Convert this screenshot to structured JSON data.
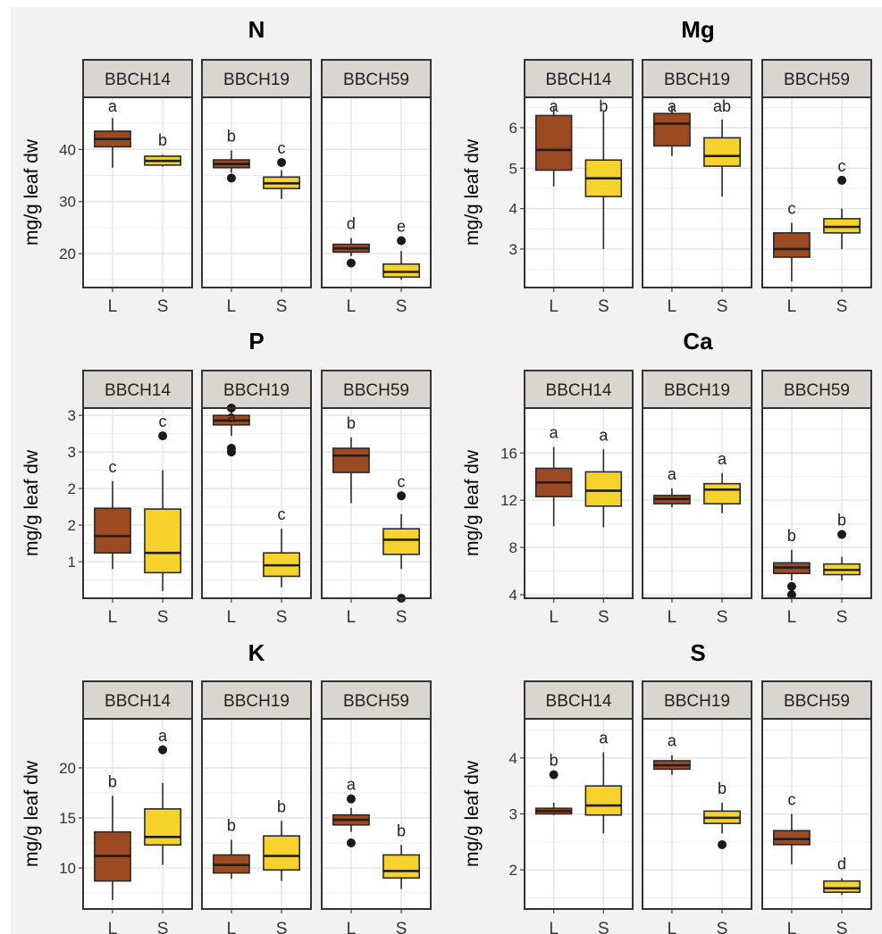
{
  "colors": {
    "L": "#9b4a22",
    "S": "#f6d22c",
    "strip_bg": "#d9d5d0",
    "grid": "#e4e4e4",
    "frame": "#333333",
    "page_bg": "#f2f2f2"
  },
  "chart_data": [
    {
      "type": "boxplot",
      "title": "N",
      "ylabel": "mg/g leaf dw",
      "ylim": [
        13.5,
        50
      ],
      "yticks": [
        20,
        30,
        40
      ],
      "ytick_labels": [
        "20",
        "30",
        "40"
      ],
      "panels": [
        {
          "label": "BBCH14",
          "boxes": [
            {
              "group": "L",
              "min": 36.5,
              "q1": 40.5,
              "median": 42,
              "q3": 43.5,
              "max": 46,
              "outliers": [],
              "letter": "a"
            },
            {
              "group": "S",
              "min": 36.7,
              "q1": 37,
              "median": 37.8,
              "q3": 38.7,
              "max": 39,
              "outliers": [],
              "letter": "b"
            }
          ]
        },
        {
          "label": "BBCH19",
          "boxes": [
            {
              "group": "L",
              "min": 35.5,
              "q1": 36.5,
              "median": 37.2,
              "q3": 38,
              "max": 39.8,
              "outliers": [
                34.5
              ],
              "letter": "b"
            },
            {
              "group": "S",
              "min": 30.5,
              "q1": 32.5,
              "median": 33.5,
              "q3": 34.7,
              "max": 36,
              "outliers": [
                37.5
              ],
              "letter": "c"
            }
          ]
        },
        {
          "label": "BBCH59",
          "boxes": [
            {
              "group": "L",
              "min": 19.5,
              "q1": 20.3,
              "median": 21,
              "q3": 21.8,
              "max": 23,
              "outliers": [
                18.2
              ],
              "letter": "d"
            },
            {
              "group": "S",
              "min": 15,
              "q1": 15.5,
              "median": 16.5,
              "q3": 18,
              "max": 20.5,
              "outliers": [
                22.5
              ],
              "letter": "e"
            }
          ]
        }
      ]
    },
    {
      "type": "boxplot",
      "title": "Mg",
      "ylabel": "mg/g leaf dw",
      "ylim": [
        2.05,
        6.75
      ],
      "yticks": [
        3,
        4,
        5,
        6
      ],
      "ytick_labels": [
        "3",
        "4",
        "5",
        "6"
      ],
      "panels": [
        {
          "label": "BBCH14",
          "boxes": [
            {
              "group": "L",
              "min": 4.55,
              "q1": 4.95,
              "median": 5.45,
              "q3": 6.3,
              "max": 6.5,
              "outliers": [],
              "letter": "a"
            },
            {
              "group": "S",
              "min": 3.0,
              "q1": 4.3,
              "median": 4.75,
              "q3": 5.2,
              "max": 6.4,
              "outliers": [],
              "letter": "b"
            }
          ]
        },
        {
          "label": "BBCH19",
          "boxes": [
            {
              "group": "L",
              "min": 5.3,
              "q1": 5.55,
              "median": 6.1,
              "q3": 6.35,
              "max": 6.55,
              "outliers": [],
              "letter": "a"
            },
            {
              "group": "S",
              "min": 4.3,
              "q1": 5.05,
              "median": 5.3,
              "q3": 5.75,
              "max": 6.2,
              "outliers": [],
              "letter": "ab"
            }
          ]
        },
        {
          "label": "BBCH59",
          "boxes": [
            {
              "group": "L",
              "min": 2.2,
              "q1": 2.8,
              "median": 3.0,
              "q3": 3.4,
              "max": 3.65,
              "outliers": [],
              "letter": "c"
            },
            {
              "group": "S",
              "min": 3.0,
              "q1": 3.4,
              "median": 3.55,
              "q3": 3.75,
              "max": 4.0,
              "outliers": [
                4.7
              ],
              "letter": "c"
            }
          ]
        }
      ]
    },
    {
      "type": "boxplot",
      "title": "P",
      "ylabel": "mg/g leaf dw",
      "ylim": [
        0.5,
        3.1
      ],
      "yticks": [
        1.0,
        1.5,
        2.0,
        2.5,
        3.0
      ],
      "ytick_labels": [
        "1",
        "2",
        "2",
        "3",
        "3"
      ],
      "panels": [
        {
          "label": "BBCH14",
          "boxes": [
            {
              "group": "L",
              "min": 0.9,
              "q1": 1.12,
              "median": 1.35,
              "q3": 1.73,
              "max": 2.1,
              "outliers": [],
              "letter": "c"
            },
            {
              "group": "S",
              "min": 0.6,
              "q1": 0.85,
              "median": 1.12,
              "q3": 1.72,
              "max": 2.25,
              "outliers": [
                2.72
              ],
              "letter": "c"
            }
          ]
        },
        {
          "label": "BBCH19",
          "boxes": [
            {
              "group": "L",
              "min": 2.72,
              "q1": 2.87,
              "median": 2.93,
              "q3": 3.0,
              "max": 3.05,
              "outliers": [
                3.1,
                2.55,
                2.5
              ],
              "letter": "a"
            },
            {
              "group": "S",
              "min": 0.65,
              "q1": 0.8,
              "median": 0.95,
              "q3": 1.12,
              "max": 1.45,
              "outliers": [],
              "letter": "c"
            }
          ]
        },
        {
          "label": "BBCH59",
          "boxes": [
            {
              "group": "L",
              "min": 1.8,
              "q1": 2.22,
              "median": 2.45,
              "q3": 2.55,
              "max": 2.7,
              "outliers": [],
              "letter": "b"
            },
            {
              "group": "S",
              "min": 0.9,
              "q1": 1.1,
              "median": 1.3,
              "q3": 1.45,
              "max": 1.65,
              "outliers": [
                1.9,
                0.5
              ],
              "letter": "c"
            }
          ]
        }
      ]
    },
    {
      "type": "boxplot",
      "title": "Ca",
      "ylabel": "mg/g leaf dw",
      "ylim": [
        3.7,
        19.8
      ],
      "yticks": [
        4,
        8,
        12,
        16
      ],
      "ytick_labels": [
        "4",
        "8",
        "12",
        "16"
      ],
      "panels": [
        {
          "label": "BBCH14",
          "boxes": [
            {
              "group": "L",
              "min": 9.8,
              "q1": 12.3,
              "median": 13.5,
              "q3": 14.7,
              "max": 16.5,
              "outliers": [],
              "letter": "a"
            },
            {
              "group": "S",
              "min": 9.7,
              "q1": 11.5,
              "median": 12.8,
              "q3": 14.4,
              "max": 16.3,
              "outliers": [],
              "letter": "a"
            }
          ]
        },
        {
          "label": "BBCH19",
          "boxes": [
            {
              "group": "L",
              "min": 11.4,
              "q1": 11.7,
              "median": 12.1,
              "q3": 12.4,
              "max": 13.0,
              "outliers": [],
              "letter": "a"
            },
            {
              "group": "S",
              "min": 10.9,
              "q1": 11.7,
              "median": 12.9,
              "q3": 13.4,
              "max": 14.3,
              "outliers": [],
              "letter": "a"
            }
          ]
        },
        {
          "label": "BBCH59",
          "boxes": [
            {
              "group": "L",
              "min": 5.2,
              "q1": 5.8,
              "median": 6.3,
              "q3": 6.7,
              "max": 7.8,
              "outliers": [
                4.7,
                4.0
              ],
              "letter": "b"
            },
            {
              "group": "S",
              "min": 5.2,
              "q1": 5.7,
              "median": 6.1,
              "q3": 6.6,
              "max": 7.2,
              "outliers": [
                9.1
              ],
              "letter": "b"
            }
          ]
        }
      ]
    },
    {
      "type": "boxplot",
      "title": "K",
      "ylabel": "mg/g leaf dw",
      "ylim": [
        5.9,
        24.9
      ],
      "yticks": [
        10,
        15,
        20
      ],
      "ytick_labels": [
        "10",
        "15",
        "20"
      ],
      "panels": [
        {
          "label": "BBCH14",
          "boxes": [
            {
              "group": "L",
              "min": 6.8,
              "q1": 8.7,
              "median": 11.2,
              "q3": 13.6,
              "max": 17.2,
              "outliers": [],
              "letter": "b"
            },
            {
              "group": "S",
              "min": 10.3,
              "q1": 12.3,
              "median": 13.1,
              "q3": 15.9,
              "max": 18.5,
              "outliers": [
                21.8
              ],
              "letter": "a"
            }
          ]
        },
        {
          "label": "BBCH19",
          "boxes": [
            {
              "group": "L",
              "min": 8.9,
              "q1": 9.5,
              "median": 10.3,
              "q3": 11.3,
              "max": 12.8,
              "outliers": [],
              "letter": "b"
            },
            {
              "group": "S",
              "min": 8.7,
              "q1": 9.8,
              "median": 11.2,
              "q3": 13.2,
              "max": 14.7,
              "outliers": [],
              "letter": "b"
            }
          ]
        },
        {
          "label": "BBCH59",
          "boxes": [
            {
              "group": "L",
              "min": 13.6,
              "q1": 14.3,
              "median": 14.8,
              "q3": 15.3,
              "max": 16.0,
              "outliers": [
                16.9,
                12.5
              ],
              "letter": "a"
            },
            {
              "group": "S",
              "min": 7.9,
              "q1": 9.0,
              "median": 9.7,
              "q3": 11.3,
              "max": 12.3,
              "outliers": [],
              "letter": "b"
            }
          ]
        }
      ]
    },
    {
      "type": "boxplot",
      "title": "S",
      "ylabel": "mg/g leaf dw",
      "ylim": [
        1.3,
        4.7
      ],
      "yticks": [
        2,
        3,
        4
      ],
      "ytick_labels": [
        "2",
        "3",
        "4"
      ],
      "panels": [
        {
          "label": "BBCH14",
          "boxes": [
            {
              "group": "L",
              "min": 2.98,
              "q1": 3.0,
              "median": 3.05,
              "q3": 3.1,
              "max": 3.2,
              "outliers": [
                3.7
              ],
              "letter": "b"
            },
            {
              "group": "S",
              "min": 2.65,
              "q1": 2.98,
              "median": 3.15,
              "q3": 3.5,
              "max": 4.1,
              "outliers": [],
              "letter": "a"
            }
          ]
        },
        {
          "label": "BBCH19",
          "boxes": [
            {
              "group": "L",
              "min": 3.7,
              "q1": 3.8,
              "median": 3.87,
              "q3": 3.95,
              "max": 4.05,
              "outliers": [],
              "letter": "a"
            },
            {
              "group": "S",
              "min": 2.65,
              "q1": 2.83,
              "median": 2.93,
              "q3": 3.05,
              "max": 3.2,
              "outliers": [
                2.45
              ],
              "letter": "b"
            }
          ]
        },
        {
          "label": "BBCH59",
          "boxes": [
            {
              "group": "L",
              "min": 2.1,
              "q1": 2.45,
              "median": 2.55,
              "q3": 2.7,
              "max": 3.0,
              "outliers": [],
              "letter": "c"
            },
            {
              "group": "S",
              "min": 1.55,
              "q1": 1.6,
              "median": 1.67,
              "q3": 1.8,
              "max": 1.85,
              "outliers": [],
              "letter": "d"
            }
          ]
        }
      ]
    }
  ]
}
